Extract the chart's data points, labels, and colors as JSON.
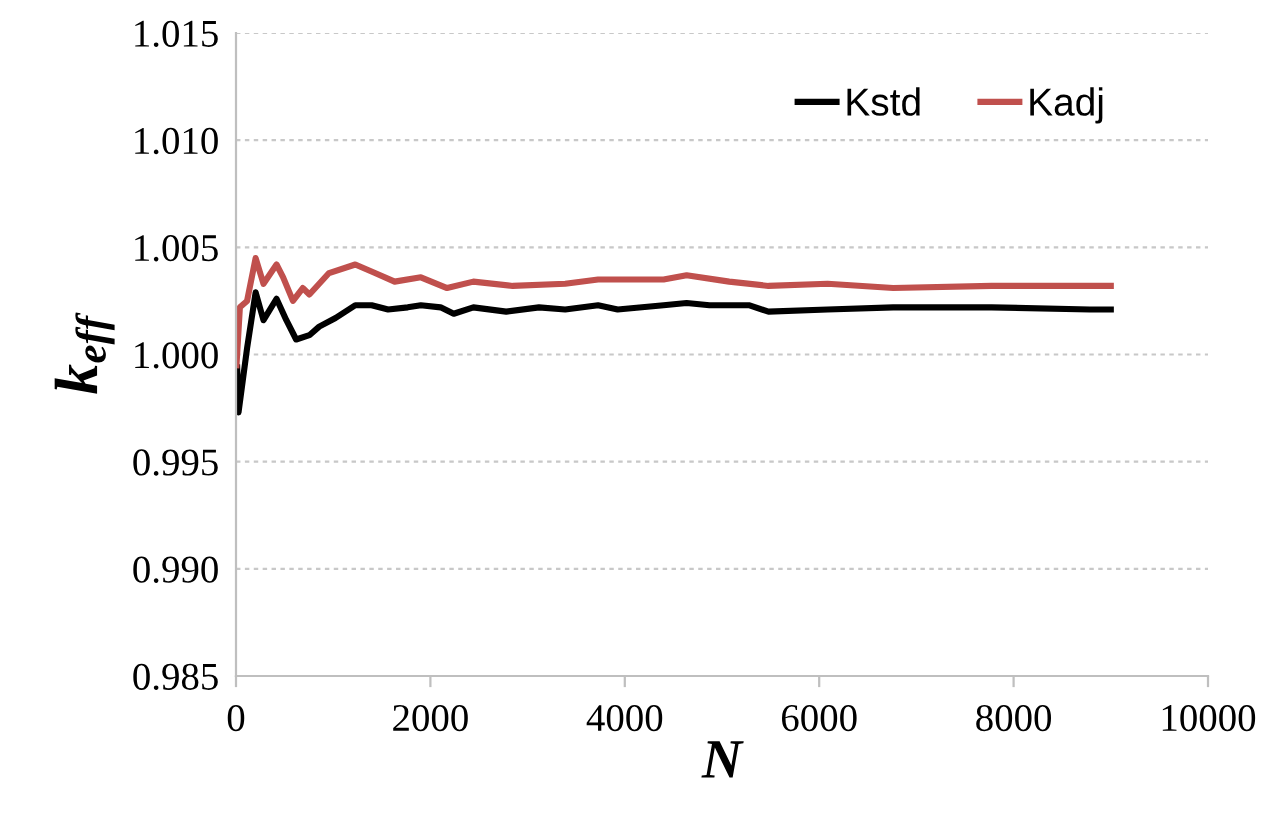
{
  "chart_data": {
    "type": "line",
    "xlabel": "N",
    "ylabel": "k$_{eff}$",
    "xlim": [
      0,
      10000
    ],
    "xticks": [
      0,
      2000,
      4000,
      6000,
      8000,
      10000
    ],
    "ylim": [
      0.985,
      1.015
    ],
    "yticks": [
      {
        "value": 0.985,
        "label": "0.985"
      },
      {
        "value": 0.99,
        "label": "0.990"
      },
      {
        "value": 0.995,
        "label": "0.995"
      },
      {
        "value": 1.0,
        "label": "1.000"
      },
      {
        "value": 1.005,
        "label": "1.005"
      },
      {
        "value": 1.01,
        "label": "1.010"
      },
      {
        "value": 1.015,
        "label": "1.015"
      }
    ],
    "grid": "y",
    "legend": "top right",
    "marker": "none",
    "line_style": "solid",
    "series": [
      {
        "name": "Kstd",
        "color": "#000000",
        "x": [
          12,
          26,
          114,
          202,
          283,
          417,
          518,
          619,
          755,
          856,
          1024,
          1227,
          1396,
          1565,
          1767,
          1902,
          2105,
          2240,
          2442,
          2780,
          3117,
          3387,
          3725,
          3927,
          4399,
          4636,
          4871,
          5276,
          5478,
          6086,
          6761,
          7773,
          8785,
          9000
        ],
        "values": [
          0.9994,
          0.9973,
          1.0003,
          1.0029,
          1.0016,
          1.0026,
          1.0016,
          1.0007,
          1.0009,
          1.0013,
          1.0017,
          1.0023,
          1.0023,
          1.0021,
          1.0022,
          1.0023,
          1.0022,
          1.0019,
          1.0022,
          1.002,
          1.0022,
          1.0021,
          1.0023,
          1.0021,
          1.0023,
          1.0024,
          1.0023,
          1.0023,
          1.002,
          1.0021,
          1.0022,
          1.0022,
          1.0021,
          1.0021
        ]
      },
      {
        "name": "Kadj",
        "color": "#c0504d",
        "x": [
          5,
          40,
          114,
          202,
          283,
          417,
          485,
          586,
          687,
          755,
          957,
          1227,
          1430,
          1632,
          1902,
          2172,
          2442,
          2847,
          3387,
          3725,
          4399,
          4636,
          5074,
          5478,
          6086,
          6761,
          7773,
          8785,
          9000
        ],
        "values": [
          0.9995,
          1.0022,
          1.0025,
          1.0045,
          1.0033,
          1.0042,
          1.0036,
          1.0025,
          1.0031,
          1.0028,
          1.0038,
          1.0042,
          1.0038,
          1.0034,
          1.0036,
          1.0031,
          1.0034,
          1.0032,
          1.0033,
          1.0035,
          1.0035,
          1.0037,
          1.0034,
          1.0032,
          1.0033,
          1.0031,
          1.0032,
          1.0032,
          1.0032
        ]
      }
    ]
  }
}
